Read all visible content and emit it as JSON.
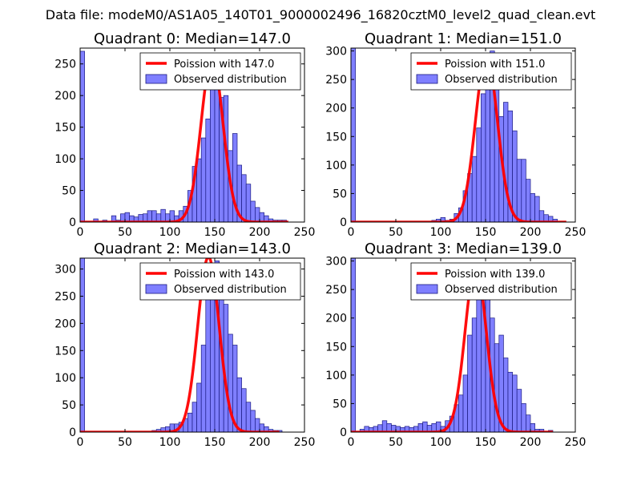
{
  "suptitle": "Data file: modeM0/AS1A05_140T01_9000002496_16820cztM0_level2_quad_clean.evt",
  "colors": {
    "poisson": "#ff0000",
    "hist_fill": "#7f7fff",
    "hist_edge": "#1a1a80",
    "axes": "#000000",
    "background": "#ffffff"
  },
  "chart_data": [
    {
      "type": "bar",
      "title": "Quadrant 0: Median=147.0",
      "legend": {
        "placement": "top-right",
        "entries": [
          "Poission with 147.0",
          "Observed distribution"
        ]
      },
      "xlim": [
        0,
        250
      ],
      "ylim": [
        0,
        275
      ],
      "xticks": [
        0,
        50,
        100,
        150,
        200,
        250
      ],
      "yticks": [
        0,
        50,
        100,
        150,
        200,
        250
      ],
      "bin_width": 5,
      "bins": [
        [
          0,
          270
        ],
        [
          15,
          5
        ],
        [
          25,
          3
        ],
        [
          35,
          10
        ],
        [
          40,
          3
        ],
        [
          45,
          13
        ],
        [
          50,
          15
        ],
        [
          55,
          10
        ],
        [
          60,
          8
        ],
        [
          65,
          12
        ],
        [
          70,
          13
        ],
        [
          75,
          18
        ],
        [
          80,
          18
        ],
        [
          85,
          13
        ],
        [
          90,
          20
        ],
        [
          95,
          13
        ],
        [
          100,
          18
        ],
        [
          105,
          10
        ],
        [
          110,
          18
        ],
        [
          115,
          25
        ],
        [
          120,
          50
        ],
        [
          125,
          88
        ],
        [
          130,
          100
        ],
        [
          135,
          133
        ],
        [
          140,
          163
        ],
        [
          145,
          240
        ],
        [
          150,
          257
        ],
        [
          155,
          197
        ],
        [
          160,
          200
        ],
        [
          165,
          113
        ],
        [
          170,
          140
        ],
        [
          175,
          90
        ],
        [
          180,
          75
        ],
        [
          185,
          60
        ],
        [
          190,
          33
        ],
        [
          195,
          23
        ],
        [
          200,
          15
        ],
        [
          205,
          10
        ],
        [
          210,
          5
        ],
        [
          215,
          3
        ],
        [
          220,
          3
        ],
        [
          225,
          3
        ]
      ],
      "poisson_mean": 147.0,
      "poisson_peak": 260,
      "poisson_range": [
        0,
        232
      ]
    },
    {
      "type": "bar",
      "title": "Quadrant 1: Median=151.0",
      "legend": {
        "placement": "top-right",
        "entries": [
          "Poission with 151.0",
          "Observed distribution"
        ]
      },
      "xlim": [
        0,
        250
      ],
      "ylim": [
        0,
        305
      ],
      "xticks": [
        0,
        50,
        100,
        150,
        200,
        250
      ],
      "yticks": [
        0,
        50,
        100,
        150,
        200,
        250,
        300
      ],
      "bin_width": 5,
      "bins": [
        [
          0,
          305
        ],
        [
          90,
          3
        ],
        [
          95,
          5
        ],
        [
          100,
          8
        ],
        [
          105,
          3
        ],
        [
          110,
          5
        ],
        [
          115,
          15
        ],
        [
          120,
          25
        ],
        [
          125,
          55
        ],
        [
          130,
          85
        ],
        [
          135,
          115
        ],
        [
          140,
          165
        ],
        [
          145,
          225
        ],
        [
          150,
          275
        ],
        [
          155,
          300
        ],
        [
          160,
          240
        ],
        [
          165,
          185
        ],
        [
          170,
          210
        ],
        [
          175,
          195
        ],
        [
          180,
          160
        ],
        [
          185,
          110
        ],
        [
          190,
          110
        ],
        [
          195,
          75
        ],
        [
          200,
          50
        ],
        [
          205,
          45
        ],
        [
          210,
          20
        ],
        [
          215,
          13
        ],
        [
          220,
          10
        ],
        [
          225,
          5
        ]
      ],
      "poisson_mean": 151.0,
      "poisson_peak": 292,
      "poisson_range": [
        0,
        240
      ]
    },
    {
      "type": "bar",
      "title": "Quadrant 2: Median=143.0",
      "legend": {
        "placement": "top-right",
        "entries": [
          "Poission with 143.0",
          "Observed distribution"
        ]
      },
      "xlim": [
        0,
        250
      ],
      "ylim": [
        0,
        320
      ],
      "xticks": [
        0,
        50,
        100,
        150,
        200,
        250
      ],
      "yticks": [
        0,
        50,
        100,
        150,
        200,
        250,
        300
      ],
      "bin_width": 5,
      "bins": [
        [
          0,
          320
        ],
        [
          80,
          3
        ],
        [
          85,
          5
        ],
        [
          90,
          8
        ],
        [
          95,
          10
        ],
        [
          100,
          15
        ],
        [
          105,
          15
        ],
        [
          110,
          18
        ],
        [
          115,
          25
        ],
        [
          120,
          35
        ],
        [
          125,
          55
        ],
        [
          130,
          90
        ],
        [
          135,
          160
        ],
        [
          140,
          245
        ],
        [
          145,
          280
        ],
        [
          150,
          315
        ],
        [
          155,
          265
        ],
        [
          160,
          235
        ],
        [
          165,
          180
        ],
        [
          170,
          160
        ],
        [
          175,
          100
        ],
        [
          180,
          80
        ],
        [
          185,
          55
        ],
        [
          190,
          40
        ],
        [
          195,
          25
        ],
        [
          200,
          15
        ],
        [
          205,
          10
        ],
        [
          210,
          5
        ],
        [
          215,
          3
        ],
        [
          220,
          3
        ]
      ],
      "poisson_mean": 143.0,
      "poisson_peak": 322,
      "poisson_range": [
        0,
        222
      ]
    },
    {
      "type": "bar",
      "title": "Quadrant 3: Median=139.0",
      "legend": {
        "placement": "top-right",
        "entries": [
          "Poission with 139.0",
          "Observed distribution"
        ]
      },
      "xlim": [
        0,
        250
      ],
      "ylim": [
        0,
        305
      ],
      "xticks": [
        0,
        50,
        100,
        150,
        200,
        250
      ],
      "yticks": [
        0,
        50,
        100,
        150,
        200,
        250,
        300
      ],
      "bin_width": 5,
      "bins": [
        [
          0,
          305
        ],
        [
          10,
          5
        ],
        [
          15,
          10
        ],
        [
          20,
          8
        ],
        [
          25,
          10
        ],
        [
          30,
          13
        ],
        [
          35,
          20
        ],
        [
          40,
          15
        ],
        [
          45,
          12
        ],
        [
          50,
          10
        ],
        [
          55,
          8
        ],
        [
          60,
          10
        ],
        [
          65,
          8
        ],
        [
          70,
          10
        ],
        [
          75,
          15
        ],
        [
          80,
          18
        ],
        [
          85,
          12
        ],
        [
          90,
          15
        ],
        [
          95,
          18
        ],
        [
          100,
          10
        ],
        [
          105,
          20
        ],
        [
          110,
          28
        ],
        [
          115,
          48
        ],
        [
          120,
          65
        ],
        [
          125,
          100
        ],
        [
          130,
          170
        ],
        [
          135,
          200
        ],
        [
          140,
          260
        ],
        [
          145,
          282
        ],
        [
          150,
          260
        ],
        [
          155,
          200
        ],
        [
          160,
          155
        ],
        [
          165,
          170
        ],
        [
          170,
          130
        ],
        [
          175,
          105
        ],
        [
          180,
          100
        ],
        [
          185,
          75
        ],
        [
          190,
          50
        ],
        [
          195,
          30
        ],
        [
          200,
          15
        ],
        [
          205,
          5
        ],
        [
          210,
          5
        ],
        [
          220,
          3
        ]
      ],
      "poisson_mean": 139.0,
      "poisson_peak": 292,
      "poisson_range": [
        0,
        225
      ]
    }
  ]
}
